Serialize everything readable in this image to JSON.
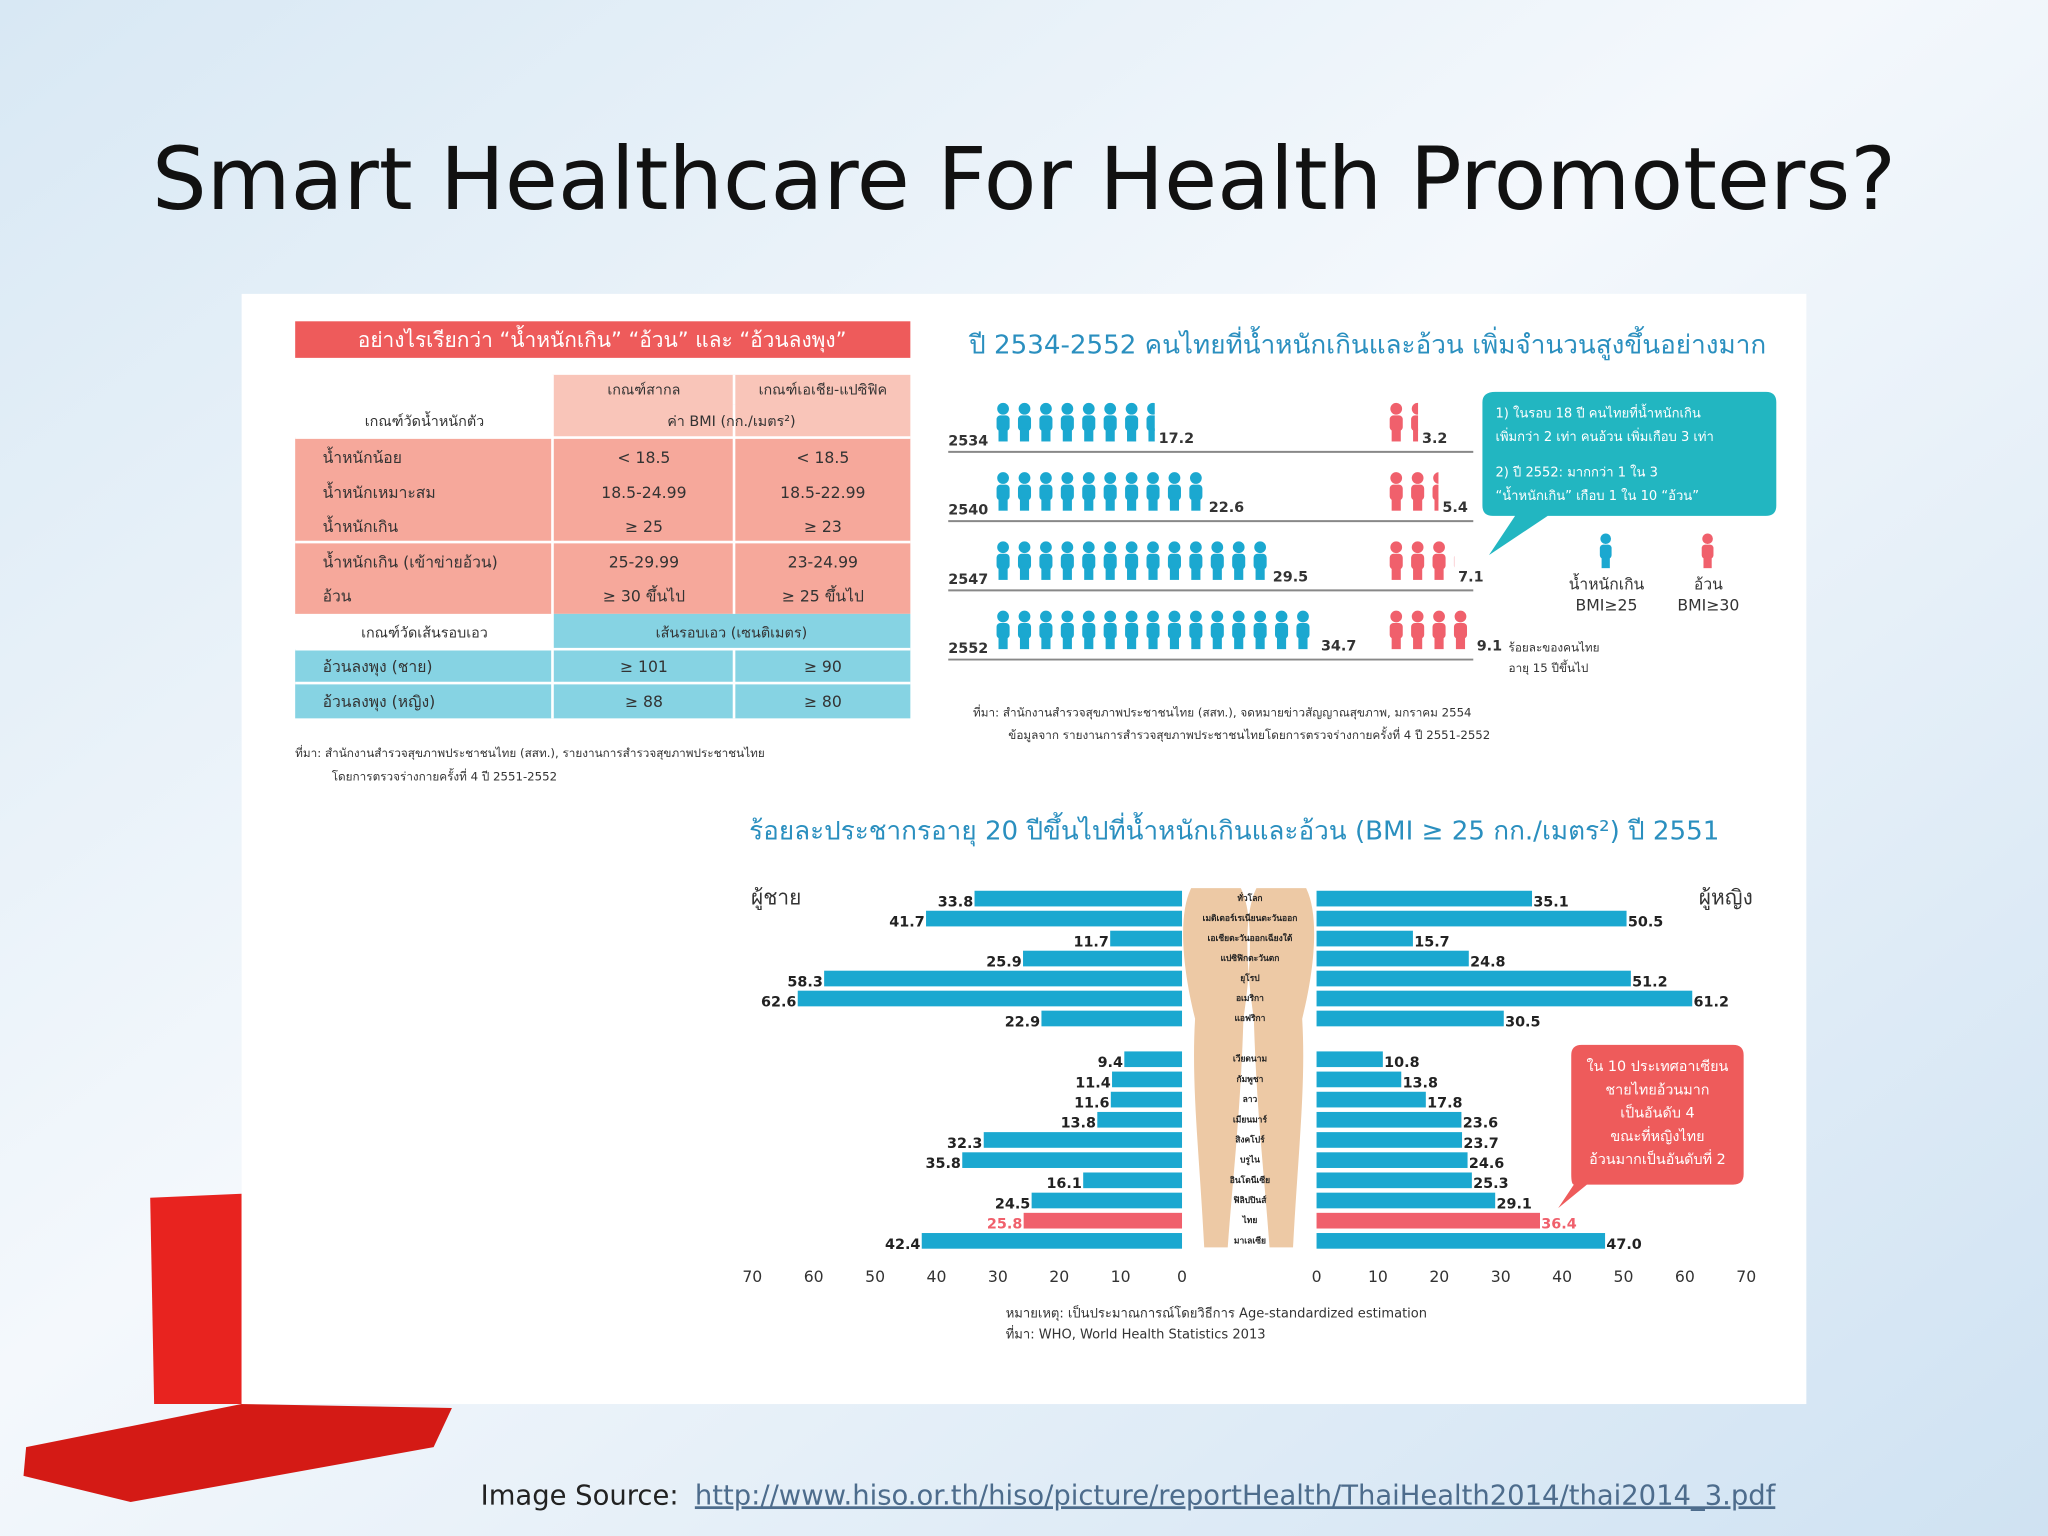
{
  "slide": {
    "title": "Smart Healthcare For Health Promoters?",
    "source_label": "Image Source:",
    "source_url": "http://www.hiso.or.th/hiso/picture/reportHealth/ThaiHealth2014/thai2014_3.pdf"
  },
  "table": {
    "title": "อย่างไรเรียกว่า “น้ำหนักเกิน” “อ้วน” และ “อ้วนลงพุง”",
    "bmi_header": {
      "criteria": "เกณฑ์วัดน้ำหนักตัว",
      "international": "เกณฑ์สากล",
      "asia_pacific": "เกณฑ์เอเชีย-แปซิฟิค",
      "unit": "ค่า BMI (กก./เมตร²)"
    },
    "bmi_rows": [
      [
        "น้ำหนักน้อย",
        "< 18.5",
        "< 18.5"
      ],
      [
        "น้ำหนักเหมาะสม",
        "18.5-24.99",
        "18.5-22.99"
      ],
      [
        "น้ำหนักเกิน",
        "≥ 25",
        "≥ 23"
      ],
      [
        "น้ำหนักเกิน (เข้าข่ายอ้วน)",
        "25-29.99",
        "23-24.99"
      ],
      [
        "อ้วน",
        "≥ 30 ขึ้นไป",
        "≥ 25 ขึ้นไป"
      ]
    ],
    "waist_header": {
      "criteria": "เกณฑ์วัดเส้นรอบเอว",
      "unit": "เส้นรอบเอว (เซนติเมตร)"
    },
    "waist_rows": [
      [
        "อ้วนลงพุง (ชาย)",
        "≥ 101",
        "≥ 90"
      ],
      [
        "อ้วนลงพุง (หญิง)",
        "≥ 88",
        "≥ 80"
      ]
    ],
    "source": [
      "ที่มา: สำนักงานสำรวจสุขภาพประชาชนไทย (สสท.), รายงานการสำรวจสุขภาพประชาชนไทย",
      "โดยการตรวจร่างกายครั้งที่ 4 ปี 2551-2552"
    ]
  },
  "trend": {
    "type": "pictogram",
    "title": "ปี 2534-2552 คนไทยที่น้ำหนักเกินและอ้วน เพิ่มจำนวนสูงขึ้นอย่างมาก",
    "categories": [
      "2534",
      "2540",
      "2547",
      "2552"
    ],
    "series": [
      {
        "name": "น้ำหนักเกิน",
        "label": "BMI≥25",
        "color": "#1ba8d0",
        "values": [
          17.2,
          22.6,
          29.5,
          34.7
        ]
      },
      {
        "name": "อ้วน",
        "label": "BMI≥30",
        "color": "#f0606c",
        "values": [
          3.2,
          5.4,
          7.1,
          9.1
        ]
      }
    ],
    "callout": [
      "1) ในรอบ 18 ปี คนไทยที่น้ำหนักเกิน",
      "เพิ่มกว่า 2 เท่า คนอ้วน เพิ่มเกือบ 3 เท่า",
      "2) ปี 2552: มากกว่า 1 ใน 3",
      "“น้ำหนักเกิน” เกือบ 1 ใน 10 “อ้วน”"
    ],
    "note": [
      "ร้อยละของคนไทย",
      "อายุ 15 ปีขึ้นไป"
    ],
    "source": [
      "ที่มา: สำนักงานสำรวจสุขภาพประชาชนไทย (สสท.), จดหมายข่าวสัญญาณสุขภาพ, มกราคม 2554",
      "ข้อมูลจาก รายงานการสำรวจสุขภาพประชาชนไทยโดยการตรวจร่างกายครั้งที่ 4 ปี 2551-2552"
    ]
  },
  "asean": {
    "type": "bar",
    "title": "ร้อยละประชากรอายุ 20 ปีขึ้นไปที่น้ำหนักเกินและอ้วน (BMI ≥ 25 กก./เมตร²) ปี 2551",
    "categories": [
      "ทั่วโลก",
      "เมดิเตอร์เรเนียนตะวันออก",
      "เอเชียตะวันออกเฉียงใต้",
      "แปซิฟิกตะวันตก",
      "ยุโรป",
      "อเมริกา",
      "แอฟริกา",
      "เวียดนาม",
      "กัมพูชา",
      "ลาว",
      "เมียนมาร์",
      "สิงคโปร์",
      "บรูไน",
      "อินโดนีเซีย",
      "ฟิลิปปินส์",
      "ไทย",
      "มาเลเซีย"
    ],
    "series": [
      {
        "name": "ผู้ชาย",
        "color": "#1ba8d0",
        "values": [
          33.8,
          41.7,
          11.7,
          25.9,
          58.3,
          62.6,
          22.9,
          9.4,
          11.4,
          11.6,
          13.8,
          32.3,
          35.8,
          16.1,
          24.5,
          25.8,
          42.4
        ]
      },
      {
        "name": "ผู้หญิง",
        "color": "#1ba8d0",
        "values": [
          35.1,
          50.5,
          15.7,
          24.8,
          51.2,
          61.2,
          30.5,
          10.8,
          13.8,
          17.8,
          23.6,
          23.7,
          24.6,
          25.3,
          29.1,
          36.4,
          47
        ],
        "value_labels": [
          "35.1",
          "50.5",
          "15.7",
          "24.8",
          "51.2",
          "61.2",
          "30.5",
          "10.8",
          "13.8",
          "17.8",
          "23.6",
          "23.7",
          "24.6",
          "25.3",
          "29.1",
          "36.4",
          "47.0"
        ]
      }
    ],
    "highlight": {
      "index": 15,
      "color": "#f0606c"
    },
    "xlim": [
      0,
      70
    ],
    "xticks": [
      0,
      10,
      20,
      30,
      40,
      50,
      60,
      70
    ],
    "callout": [
      "ใน 10 ประเทศอาเซียน",
      "ชายไทยอ้วนมาก",
      "เป็นอันดับ 4",
      "ขณะที่หญิงไทย",
      "อ้วนมากเป็นอันดับที่ 2"
    ],
    "notes": [
      "หมายเหตุ: เป็นประมาณการณ์โดยวิธีการ Age-standardized estimation",
      "ที่มา: WHO, World Health Statistics 2013"
    ]
  }
}
